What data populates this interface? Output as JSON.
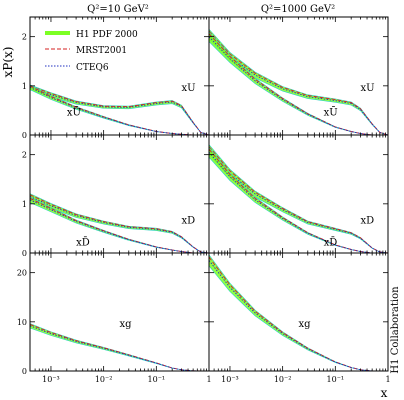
{
  "chart_data": {
    "type": "line",
    "xlabel": "x",
    "ylabel": "xP(x)",
    "collaboration": "H1 Collaboration",
    "x_scale": "log",
    "x_ticks": [
      "10⁻³",
      "10⁻²",
      "10⁻¹",
      "1"
    ],
    "columns": [
      {
        "title": "Q²=10 GeV²"
      },
      {
        "title": "Q²=1000 GeV²"
      }
    ],
    "legend": {
      "placement": "top-left",
      "entries": [
        {
          "name": "H1 PDF 2000",
          "color": "#7cff24",
          "style": "band"
        },
        {
          "name": "MRST2001",
          "color": "#d42020",
          "style": "dashed"
        },
        {
          "name": "CTEQ6",
          "color": "#2030c0",
          "style": "dotted"
        }
      ]
    },
    "panels": [
      {
        "row": 0,
        "col": 0,
        "ylim": [
          0,
          2.4
        ],
        "y_ticks": [
          0,
          1,
          2
        ],
        "labels": [
          {
            "text": "xU",
            "x": 0.3,
            "y": 0.9
          },
          {
            "text": "xŪ",
            "x": 0.002,
            "y": 0.4
          }
        ],
        "series": [
          {
            "name": "xU",
            "x": [
              0.0004,
              0.001,
              0.003,
              0.01,
              0.03,
              0.1,
              0.2,
              0.3,
              0.5,
              0.7,
              1.0
            ],
            "y": [
              0.97,
              0.82,
              0.66,
              0.57,
              0.56,
              0.64,
              0.67,
              0.58,
              0.25,
              0.05,
              0.0
            ]
          },
          {
            "name": "xŪ",
            "x": [
              0.0004,
              0.001,
              0.003,
              0.01,
              0.03,
              0.1,
              0.2,
              0.3,
              0.5,
              1.0
            ],
            "y": [
              0.97,
              0.76,
              0.55,
              0.36,
              0.2,
              0.07,
              0.03,
              0.015,
              0.0,
              0.0
            ]
          }
        ]
      },
      {
        "row": 0,
        "col": 1,
        "ylim": [
          0,
          2.4
        ],
        "y_ticks": [
          0,
          1,
          2
        ],
        "labels": [
          {
            "text": "xU",
            "x": 0.3,
            "y": 0.9
          },
          {
            "text": "xŪ",
            "x": 0.06,
            "y": 0.4
          }
        ],
        "series": [
          {
            "name": "xU",
            "x": [
              0.0004,
              0.001,
              0.003,
              0.01,
              0.03,
              0.1,
              0.2,
              0.3,
              0.5,
              0.7,
              1.0
            ],
            "y": [
              2.05,
              1.6,
              1.22,
              0.94,
              0.78,
              0.7,
              0.64,
              0.52,
              0.22,
              0.05,
              0.0
            ]
          },
          {
            "name": "xŪ",
            "x": [
              0.0004,
              0.001,
              0.003,
              0.01,
              0.03,
              0.1,
              0.2,
              0.3,
              0.5,
              1.0
            ],
            "y": [
              2.0,
              1.55,
              1.1,
              0.72,
              0.42,
              0.16,
              0.07,
              0.03,
              0.0,
              0.0
            ]
          }
        ]
      },
      {
        "row": 1,
        "col": 0,
        "ylim": [
          0,
          2.4
        ],
        "y_ticks": [
          0,
          1,
          2
        ],
        "labels": [
          {
            "text": "xD",
            "x": 0.3,
            "y": 0.6
          },
          {
            "text": "xD̄",
            "x": 0.003,
            "y": 0.15
          }
        ],
        "series": [
          {
            "name": "xD",
            "x": [
              0.0004,
              0.001,
              0.003,
              0.01,
              0.03,
              0.1,
              0.2,
              0.3,
              0.5,
              0.7,
              1.0
            ],
            "y": [
              1.15,
              0.96,
              0.76,
              0.62,
              0.52,
              0.48,
              0.42,
              0.32,
              0.12,
              0.02,
              0.0
            ]
          },
          {
            "name": "xD̄",
            "x": [
              0.0004,
              0.001,
              0.003,
              0.01,
              0.03,
              0.1,
              0.2,
              0.3,
              0.5,
              1.0
            ],
            "y": [
              1.08,
              0.88,
              0.64,
              0.44,
              0.27,
              0.12,
              0.06,
              0.03,
              0.0,
              0.0
            ]
          }
        ]
      },
      {
        "row": 1,
        "col": 1,
        "ylim": [
          0,
          2.4
        ],
        "y_ticks": [
          0,
          1,
          2
        ],
        "labels": [
          {
            "text": "xD",
            "x": 0.3,
            "y": 0.6
          },
          {
            "text": "xD̄",
            "x": 0.06,
            "y": 0.15
          }
        ],
        "series": [
          {
            "name": "xD",
            "x": [
              0.0004,
              0.001,
              0.003,
              0.01,
              0.03,
              0.1,
              0.2,
              0.3,
              0.5,
              0.7,
              1.0
            ],
            "y": [
              2.1,
              1.62,
              1.2,
              0.88,
              0.62,
              0.48,
              0.4,
              0.3,
              0.1,
              0.02,
              0.0
            ]
          },
          {
            "name": "xD̄",
            "x": [
              0.0004,
              0.001,
              0.003,
              0.01,
              0.03,
              0.1,
              0.2,
              0.3,
              0.5,
              1.0
            ],
            "y": [
              2.05,
              1.55,
              1.08,
              0.7,
              0.4,
              0.16,
              0.07,
              0.03,
              0.0,
              0.0
            ]
          }
        ]
      },
      {
        "row": 2,
        "col": 0,
        "ylim": [
          0,
          24
        ],
        "y_ticks": [
          0,
          10,
          20
        ],
        "labels": [
          {
            "text": "xg",
            "x": 0.02,
            "y": 9
          }
        ],
        "series": [
          {
            "name": "xg",
            "x": [
              0.0004,
              0.001,
              0.003,
              0.01,
              0.03,
              0.1,
              0.2,
              0.3,
              0.5,
              1.0
            ],
            "y": [
              9.2,
              7.6,
              6.0,
              4.6,
              3.2,
              1.6,
              0.6,
              0.25,
              0.03,
              0.0
            ]
          }
        ]
      },
      {
        "row": 2,
        "col": 1,
        "ylim": [
          0,
          24
        ],
        "y_ticks": [
          0,
          10,
          20
        ],
        "labels": [
          {
            "text": "xg",
            "x": 0.02,
            "y": 9
          }
        ],
        "series": [
          {
            "name": "xg",
            "x": [
              0.0004,
              0.001,
              0.003,
              0.01,
              0.03,
              0.1,
              0.2,
              0.3,
              0.5,
              1.0
            ],
            "y": [
              22.5,
              17.0,
              11.8,
              7.6,
              4.5,
              1.8,
              0.7,
              0.25,
              0.02,
              0.0
            ]
          }
        ]
      }
    ]
  }
}
